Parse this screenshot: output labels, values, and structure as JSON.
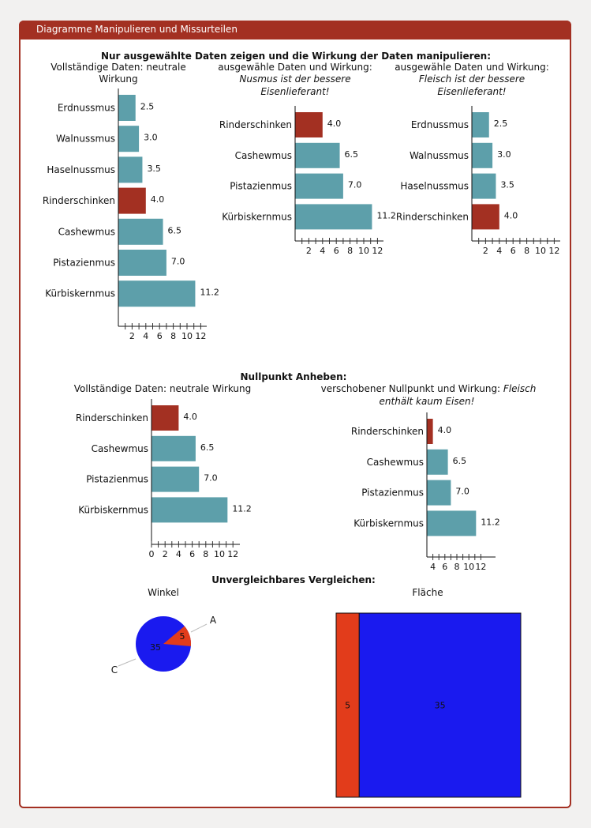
{
  "page": {
    "title": "Diagramme Manipulieren und Missurteilen"
  },
  "sections": {
    "s1": "Nur ausgewählte Daten zeigen und die Wirkung der Daten manipulieren:",
    "s2": "Nullpunkt Anheben:",
    "s3": "Unvergleichbares Vergleichen:"
  },
  "colors": {
    "teal": "#5d9faa",
    "highlight": "#a33022",
    "red": "#e23c1b",
    "blue": "#1a1aef",
    "frame": "#a33022"
  },
  "chart_data": [
    {
      "type": "bar",
      "orientation": "horizontal",
      "title_lines": [
        "Vollständige Daten: neutrale",
        "Wirkung"
      ],
      "categories": [
        "Erdnussmus",
        "Walnussmus",
        "Haselnussmus",
        "Rinderschinken",
        "Cashewmus",
        "Pistazienmus",
        "Kürbiskernmus"
      ],
      "values": [
        2.5,
        3.0,
        3.5,
        4.0,
        6.5,
        7.0,
        11.2
      ],
      "labels": [
        "2.5",
        "3.0",
        "3.5",
        "4.0",
        "6.5",
        "7.0",
        "11.2"
      ],
      "highlight": [
        "Rinderschinken"
      ],
      "xlim": [
        0,
        12.5
      ],
      "ticks": [
        "2",
        "4",
        "6",
        "8",
        "10",
        "12"
      ],
      "tick_values": [
        2,
        4,
        6,
        8,
        10,
        12
      ]
    },
    {
      "type": "bar",
      "orientation": "horizontal",
      "title_lines": [
        "ausgewähle Daten und Wirkung:",
        "Nusmus ist der bessere",
        "Eisenlieferant!"
      ],
      "categories": [
        "Rinderschinken",
        "Cashewmus",
        "Pistazienmus",
        "Kürbiskernmus"
      ],
      "values": [
        4.0,
        6.5,
        7.0,
        11.2
      ],
      "labels": [
        "4.0",
        "6.5",
        "7.0",
        "11.2"
      ],
      "highlight": [
        "Rinderschinken"
      ],
      "xlim": [
        0,
        12.5
      ],
      "ticks": [
        "2",
        "4",
        "6",
        "8",
        "10",
        "12"
      ],
      "tick_values": [
        2,
        4,
        6,
        8,
        10,
        12
      ]
    },
    {
      "type": "bar",
      "orientation": "horizontal",
      "title_lines": [
        "ausgewähle Daten und Wirkung:",
        "Fleisch ist der bessere",
        "Eisenlieferant!"
      ],
      "categories": [
        "Erdnussmus",
        "Walnussmus",
        "Haselnussmus",
        "Rinderschinken"
      ],
      "values": [
        2.5,
        3.0,
        3.5,
        4.0
      ],
      "labels": [
        "2.5",
        "3.0",
        "3.5",
        "4.0"
      ],
      "highlight": [
        "Rinderschinken"
      ],
      "xlim": [
        0,
        12.5
      ],
      "ticks": [
        "2",
        "4",
        "6",
        "8",
        "10",
        "12"
      ],
      "tick_values": [
        2,
        4,
        6,
        8,
        10,
        12
      ]
    },
    {
      "type": "bar",
      "orientation": "horizontal",
      "title_lines": [
        "Vollständige Daten: neutrale Wirkung"
      ],
      "categories": [
        "Rinderschinken",
        "Cashewmus",
        "Pistazienmus",
        "Kürbiskernmus"
      ],
      "values": [
        4.0,
        6.5,
        7.0,
        11.2
      ],
      "labels": [
        "4.0",
        "6.5",
        "7.0",
        "11.2"
      ],
      "highlight": [
        "Rinderschinken"
      ],
      "xlim": [
        0,
        12.5
      ],
      "ticks": [
        "0",
        "2",
        "4",
        "6",
        "8",
        "10",
        "12"
      ],
      "tick_values": [
        0,
        2,
        4,
        6,
        8,
        10,
        12
      ]
    },
    {
      "type": "bar",
      "orientation": "horizontal",
      "title_lines": [
        "verschobener Nullpunkt und Wirkung: Fleisch",
        "enthält kaum Eisen!"
      ],
      "categories": [
        "Rinderschinken",
        "Cashewmus",
        "Pistazienmus",
        "Kürbiskernmus"
      ],
      "values": [
        4.0,
        6.5,
        7.0,
        11.2
      ],
      "labels": [
        "4.0",
        "6.5",
        "7.0",
        "11.2"
      ],
      "highlight": [
        "Rinderschinken"
      ],
      "xlim": [
        3,
        12.5
      ],
      "ticks": [
        "4",
        "6",
        "8",
        "10",
        "12"
      ],
      "tick_values": [
        4,
        6,
        8,
        10,
        12
      ]
    },
    {
      "type": "pie",
      "title": "Winkel",
      "slices": [
        {
          "label": "A",
          "value": 5
        },
        {
          "label": "C",
          "value": 35
        }
      ]
    },
    {
      "type": "area",
      "title": "Fläche",
      "rects": [
        {
          "value": 5
        },
        {
          "value": 35
        }
      ]
    }
  ]
}
